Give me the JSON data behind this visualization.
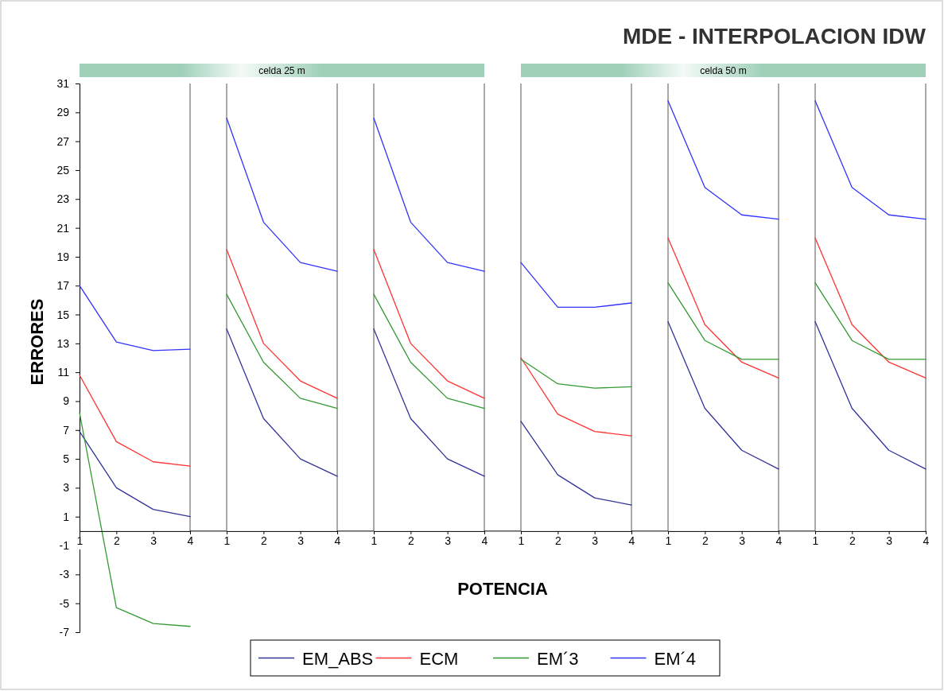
{
  "chart_data": [
    {
      "type": "line",
      "ylabel": "ERRORES",
      "x": [
        1,
        2,
        3,
        4
      ],
      "xlim": [
        1,
        4
      ],
      "xticks": [
        1,
        2,
        3,
        4
      ],
      "ylim": [
        -7,
        31
      ],
      "yticks": [
        -7,
        -5,
        -3,
        -1,
        1,
        3,
        5,
        7,
        9,
        11,
        13,
        15,
        17,
        19,
        21,
        23,
        25,
        27,
        29,
        31
      ],
      "series": [
        {
          "color": "#333399",
          "values": [
            6.9,
            3.0,
            1.5,
            1.0
          ]
        },
        {
          "color": "#ff3333",
          "values": [
            10.8,
            6.2,
            4.8,
            4.5
          ]
        },
        {
          "color": "#339933",
          "values": [
            8.2,
            -5.3,
            -6.4,
            -6.6
          ]
        },
        {
          "color": "#3333ff",
          "values": [
            17.0,
            13.1,
            12.5,
            12.6
          ]
        }
      ]
    },
    {
      "type": "line",
      "annotations": [
        "celda 25 m"
      ],
      "legend": "bottom",
      "x": [
        1,
        2,
        3,
        4
      ],
      "xlim": [
        1,
        4
      ],
      "xticks": [
        1,
        2,
        3,
        4
      ],
      "ylim": [
        -7,
        31
      ],
      "tick_labels": "x",
      "series": [
        {
          "name": "EM_ABS",
          "color": "#333399",
          "values": [
            14.0,
            7.8,
            5.0,
            3.8
          ]
        },
        {
          "name": "ECM",
          "color": "#ff3333",
          "values": [
            19.5,
            13.0,
            10.4,
            9.2
          ]
        },
        {
          "name": "EM´3",
          "color": "#339933",
          "values": [
            16.4,
            11.7,
            9.2,
            8.5
          ]
        },
        {
          "name": "EM´4",
          "color": "#3333ff",
          "values": [
            28.6,
            21.4,
            18.6,
            18.0
          ]
        }
      ]
    },
    {
      "type": "line",
      "xlabel": "POTENCIA",
      "x": [
        1,
        2,
        3,
        4
      ],
      "xlim": [
        1,
        4
      ],
      "xticks": [
        1,
        2,
        3,
        4
      ],
      "ylim": [
        -7,
        31
      ],
      "tick_labels": "x",
      "series": [
        {
          "color": "#333399",
          "values": [
            14.0,
            7.8,
            5.0,
            3.8
          ]
        },
        {
          "color": "#ff3333",
          "values": [
            19.5,
            13.0,
            10.4,
            9.2
          ]
        },
        {
          "color": "#339933",
          "values": [
            16.4,
            11.7,
            9.2,
            8.5
          ]
        },
        {
          "color": "#3333ff",
          "values": [
            28.6,
            21.4,
            18.6,
            18.0
          ]
        }
      ]
    },
    {
      "type": "line",
      "x": [
        1,
        2,
        3,
        4
      ],
      "xlim": [
        1,
        4
      ],
      "xticks": [
        1,
        2,
        3,
        4
      ],
      "ylim": [
        -7,
        31
      ],
      "tick_labels": "x",
      "series": [
        {
          "color": "#333399",
          "values": [
            7.6,
            3.9,
            2.3,
            1.8
          ]
        },
        {
          "color": "#ff3333",
          "values": [
            12.0,
            8.1,
            6.9,
            6.6
          ]
        },
        {
          "color": "#339933",
          "values": [
            11.9,
            10.2,
            9.9,
            10.0
          ]
        },
        {
          "color": "#3333ff",
          "values": [
            18.6,
            15.5,
            15.5,
            15.8
          ]
        }
      ]
    },
    {
      "type": "line",
      "annotations": [
        "celda 50 m"
      ],
      "x": [
        1,
        2,
        3,
        4
      ],
      "xlim": [
        1,
        4
      ],
      "xticks": [
        1,
        2,
        3,
        4
      ],
      "ylim": [
        -7,
        31
      ],
      "tick_labels": "x",
      "series": [
        {
          "color": "#333399",
          "values": [
            14.5,
            8.5,
            5.6,
            4.3
          ]
        },
        {
          "color": "#ff3333",
          "values": [
            20.3,
            14.3,
            11.7,
            10.6
          ]
        },
        {
          "color": "#339933",
          "values": [
            17.2,
            13.2,
            11.9,
            11.9
          ]
        },
        {
          "color": "#3333ff",
          "values": [
            29.8,
            23.8,
            21.9,
            21.6
          ]
        }
      ]
    },
    {
      "type": "line",
      "title": "MDE - INTERPOLACION IDW",
      "x": [
        1,
        2,
        3,
        4
      ],
      "xlim": [
        1,
        4
      ],
      "xticks": [
        1,
        2,
        3,
        4
      ],
      "ylim": [
        -7,
        31
      ],
      "tick_labels": "x",
      "series": [
        {
          "color": "#333399",
          "values": [
            14.5,
            8.5,
            5.6,
            4.3
          ]
        },
        {
          "color": "#ff3333",
          "values": [
            20.3,
            14.3,
            11.7,
            10.6
          ]
        },
        {
          "color": "#339933",
          "values": [
            17.2,
            13.2,
            11.9,
            11.9
          ]
        },
        {
          "color": "#3333ff",
          "values": [
            29.8,
            23.8,
            21.9,
            21.6
          ]
        }
      ]
    }
  ]
}
